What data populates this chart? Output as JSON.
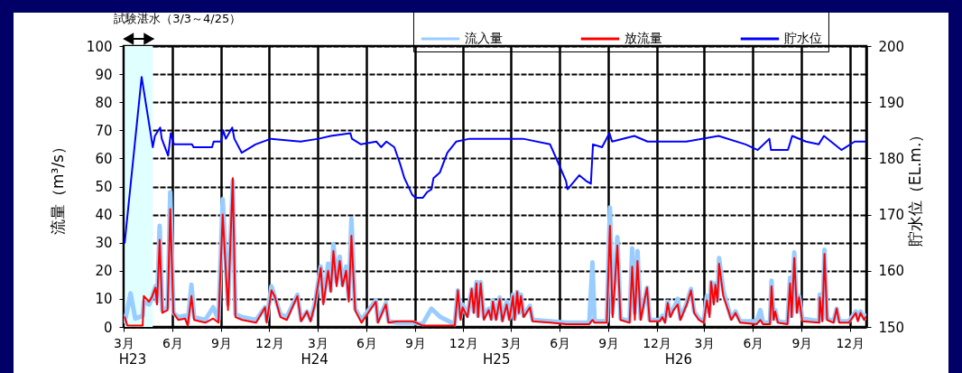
{
  "chart_data": {
    "type": "line",
    "ylabel": "流量（m³/s）",
    "y2label": "貯水位（EL.m.）",
    "xlim": [
      "2011-03-01",
      "2015-01-01"
    ],
    "xticks": [
      {
        "value": "2011-03-01",
        "label": "3月"
      },
      {
        "value": "2011-06-01",
        "label": "6月"
      },
      {
        "value": "2011-09-01",
        "label": "9月"
      },
      {
        "value": "2011-12-01",
        "label": "12月"
      },
      {
        "value": "2012-03-01",
        "label": "3月"
      },
      {
        "value": "2012-06-01",
        "label": "6月"
      },
      {
        "value": "2012-09-01",
        "label": "9月"
      },
      {
        "value": "2012-12-01",
        "label": "12月"
      },
      {
        "value": "2013-03-01",
        "label": "3月"
      },
      {
        "value": "2013-06-01",
        "label": "6月"
      },
      {
        "value": "2013-09-01",
        "label": "9月"
      },
      {
        "value": "2013-12-01",
        "label": "12月"
      },
      {
        "value": "2014-03-01",
        "label": "3月"
      },
      {
        "value": "2014-06-01",
        "label": "6月"
      },
      {
        "value": "2014-09-01",
        "label": "9月"
      },
      {
        "value": "2014-12-01",
        "label": "12月"
      }
    ],
    "ylim": [
      0,
      100
    ],
    "yticks": [
      0,
      10,
      20,
      30,
      40,
      50,
      60,
      70,
      80,
      90,
      100
    ],
    "y2lim": [
      150,
      200
    ],
    "y2ticks": [
      150,
      160,
      170,
      180,
      190,
      200
    ],
    "grid": true,
    "legend": "top",
    "x": [
      "2011-03-03",
      "2011-03-08",
      "2011-03-14",
      "2011-03-23",
      "2011-04-06",
      "2011-04-08",
      "2011-04-18",
      "2011-04-23",
      "2011-04-30",
      "2011-05-03",
      "2011-05-08",
      "2011-05-13",
      "2011-05-23",
      "2011-05-28",
      "2011-06-03",
      "2011-06-12",
      "2011-06-25",
      "2011-06-30",
      "2011-07-07",
      "2011-07-12",
      "2011-08-02",
      "2011-08-17",
      "2011-08-27",
      "2011-09-04",
      "2011-09-14",
      "2011-09-23",
      "2011-09-28",
      "2011-10-11",
      "2011-11-06",
      "2011-11-23",
      "2011-11-26",
      "2011-12-05",
      "2011-12-11",
      "2011-12-22",
      "2012-01-03",
      "2012-01-23",
      "2012-01-30",
      "2012-02-10",
      "2012-02-17",
      "2012-02-25",
      "2012-03-07",
      "2012-03-12",
      "2012-03-21",
      "2012-03-26",
      "2012-03-31",
      "2012-04-06",
      "2012-04-12",
      "2012-04-17",
      "2012-04-24",
      "2012-04-29",
      "2012-05-04",
      "2012-05-11",
      "2012-05-23",
      "2012-06-19",
      "2012-06-23",
      "2012-07-08",
      "2012-07-13",
      "2012-07-30",
      "2012-08-28",
      "2012-09-15",
      "2012-10-02",
      "2012-10-19",
      "2012-11-15",
      "2012-11-21",
      "2012-11-26",
      "2012-11-30",
      "2012-12-09",
      "2012-12-17",
      "2012-12-21",
      "2012-12-26",
      "2012-12-29",
      "2013-01-03",
      "2013-01-09",
      "2013-01-18",
      "2013-01-23",
      "2013-01-26",
      "2013-02-01",
      "2013-02-08",
      "2013-02-13",
      "2013-02-21",
      "2013-02-26",
      "2013-03-05",
      "2013-03-08",
      "2013-03-13",
      "2013-03-16",
      "2013-03-20",
      "2013-03-25",
      "2013-04-06",
      "2013-04-11",
      "2013-05-15",
      "2013-06-14",
      "2013-07-27",
      "2013-08-02",
      "2013-08-06",
      "2013-08-29",
      "2013-09-04",
      "2013-09-09",
      "2013-09-18",
      "2013-09-24",
      "2013-10-11",
      "2013-10-16",
      "2013-10-21",
      "2013-10-26",
      "2013-11-01",
      "2013-11-13",
      "2013-11-18",
      "2013-12-07",
      "2013-12-12",
      "2013-12-17",
      "2013-12-22",
      "2013-12-27",
      "2014-01-02",
      "2014-01-10",
      "2014-01-15",
      "2014-01-27",
      "2014-02-04",
      "2014-02-10",
      "2014-02-19",
      "2014-02-28",
      "2014-03-06",
      "2014-03-11",
      "2014-03-14",
      "2014-03-19",
      "2014-03-22",
      "2014-03-26",
      "2014-03-29",
      "2014-04-06",
      "2014-04-16",
      "2014-04-21",
      "2014-04-29",
      "2014-05-08",
      "2014-06-08",
      "2014-06-15",
      "2014-06-20",
      "2014-07-03",
      "2014-07-06",
      "2014-07-10",
      "2014-07-13",
      "2014-07-18",
      "2014-08-05",
      "2014-08-10",
      "2014-08-13",
      "2014-08-18",
      "2014-08-23",
      "2014-08-27",
      "2014-09-02",
      "2014-10-04",
      "2014-10-05",
      "2014-10-10",
      "2014-10-14",
      "2014-10-19",
      "2014-10-31",
      "2014-11-06",
      "2014-11-11",
      "2014-11-29",
      "2014-12-12",
      "2014-12-16",
      "2014-12-21",
      "2014-12-28",
      "2014-12-31"
    ],
    "series": [
      {
        "name": "流入量",
        "color": "#99ccff",
        "values": [
          2,
          6,
          12,
          3,
          4,
          9,
          8,
          10,
          14.5,
          9,
          36,
          6,
          7,
          48,
          5,
          3.5,
          4,
          1.5,
          15,
          3.5,
          2.5,
          7,
          2.5,
          45.5,
          8,
          52,
          4.5,
          3.5,
          2.5,
          7,
          2.5,
          14.5,
          11,
          4.5,
          3.5,
          11.5,
          2.5,
          5.5,
          2.5,
          8.5,
          21.5,
          9,
          22.5,
          13,
          29.5,
          16,
          25,
          15,
          21.5,
          10,
          38.5,
          6.5,
          2.5,
          9.5,
          2,
          8.5,
          2,
          1.5,
          1.5,
          1,
          6.5,
          3.5,
          1,
          13,
          3.5,
          8,
          4,
          13.5,
          5.5,
          16,
          4,
          16,
          3.5,
          6.5,
          3,
          9.5,
          3,
          10.5,
          2.5,
          9,
          3,
          11.5,
          3,
          12.5,
          5,
          11.5,
          4,
          7.5,
          2.5,
          2,
          1.5,
          1.5,
          23,
          2,
          2,
          42.5,
          5,
          32,
          3,
          2,
          28,
          5,
          27,
          3,
          14,
          2.5,
          2.5,
          4,
          2,
          9,
          4,
          6.5,
          10,
          3,
          8.5,
          13.5,
          5.5,
          3,
          2,
          11,
          5,
          16,
          9,
          15.5,
          10,
          24.5,
          13,
          6,
          3,
          5.5,
          2,
          2,
          6,
          1.5,
          1.5,
          16.5,
          3,
          6,
          2,
          1.5,
          17.5,
          4,
          26.5,
          5.5,
          11,
          3,
          2,
          11.5,
          3,
          27.5,
          3,
          2,
          6.5,
          2,
          2,
          5.5,
          3,
          5.5,
          3,
          4
        ]
      },
      {
        "name": "放流量",
        "color": "#ff0000",
        "values": [
          3.5,
          0.5,
          0.5,
          0.5,
          0.5,
          11,
          9,
          10.5,
          14,
          8,
          31,
          5,
          6,
          42,
          5,
          2.5,
          3,
          0.5,
          11,
          2.5,
          1.5,
          3,
          1.5,
          40,
          6,
          53,
          3.5,
          2.5,
          1.5,
          7,
          1.5,
          13,
          11,
          3.5,
          2.5,
          11,
          2,
          5.5,
          2,
          8,
          21,
          8,
          20,
          12.5,
          27,
          14.5,
          23.5,
          14.5,
          20,
          9,
          32.5,
          6,
          1.5,
          9,
          1.5,
          8,
          1.5,
          2,
          2,
          0.5,
          0.5,
          0.5,
          0.5,
          13,
          2.5,
          7,
          3.5,
          13.5,
          5,
          15.5,
          3.5,
          15.5,
          2.5,
          6,
          2.5,
          9,
          2.5,
          10,
          2,
          8,
          2.5,
          11,
          2.5,
          12.5,
          5,
          11,
          3.5,
          7,
          2,
          1.5,
          1,
          1,
          2.5,
          1.5,
          1.5,
          36,
          3.5,
          29,
          2.5,
          1.5,
          21.5,
          2.5,
          23.5,
          2.5,
          14,
          2,
          2,
          3.5,
          1.5,
          8.5,
          3.5,
          6,
          8,
          2.5,
          8,
          13,
          5,
          2.5,
          1.5,
          9.5,
          3.5,
          16,
          8,
          15,
          9,
          22.5,
          11,
          5.5,
          2.5,
          5,
          1.5,
          1,
          2.5,
          1,
          1,
          14.5,
          2.5,
          5.5,
          1.5,
          1,
          15.5,
          3.5,
          24.5,
          5,
          10.5,
          2,
          1.5,
          10.5,
          2,
          26,
          2.5,
          1.5,
          6.5,
          1.5,
          1.5,
          5,
          2,
          5,
          2.5,
          3.5
        ]
      },
      {
        "name": "貯水位",
        "color": "#0000ff",
        "axis": "y2",
        "x": [
          "2011-03-03",
          "2011-04-04",
          "2011-04-25",
          "2011-04-29",
          "2011-05-09",
          "2011-05-12",
          "2011-05-24",
          "2011-05-29",
          "2011-06-04",
          "2011-07-08",
          "2011-07-11",
          "2011-08-15",
          "2011-08-18",
          "2011-09-01",
          "2011-09-05",
          "2011-09-10",
          "2011-09-22",
          "2011-09-26",
          "2011-10-10",
          "2011-11-05",
          "2011-12-04",
          "2012-01-29",
          "2012-03-03",
          "2012-03-26",
          "2012-05-02",
          "2012-05-05",
          "2012-05-22",
          "2012-06-20",
          "2012-06-29",
          "2012-07-09",
          "2012-07-24",
          "2012-08-04",
          "2012-08-12",
          "2012-08-27",
          "2012-09-02",
          "2012-09-16",
          "2012-09-24",
          "2012-10-02",
          "2012-10-06",
          "2012-10-18",
          "2012-11-01",
          "2012-11-18",
          "2012-12-13",
          "2013-03-24",
          "2013-05-14",
          "2013-05-28",
          "2013-06-13",
          "2013-06-16",
          "2013-07-08",
          "2013-07-21",
          "2013-07-30",
          "2013-08-03",
          "2013-08-20",
          "2013-09-03",
          "2013-09-08",
          "2013-10-20",
          "2013-11-14",
          "2014-01-26",
          "2014-03-28",
          "2014-05-18",
          "2014-06-10",
          "2014-07-02",
          "2014-07-05",
          "2014-08-06",
          "2014-08-14",
          "2014-09-09",
          "2014-10-03",
          "2014-10-13",
          "2014-11-15",
          "2014-12-10",
          "2014-12-29"
        ],
        "values": [
          165,
          194.5,
          182,
          184,
          185.5,
          183.5,
          180.5,
          184.5,
          182.5,
          182.5,
          182,
          182,
          183,
          183,
          185,
          183.5,
          185.5,
          183.5,
          181,
          182.5,
          183.5,
          183,
          183.5,
          184,
          184.5,
          183.5,
          182.5,
          183,
          182,
          183,
          182,
          179,
          176.5,
          173.5,
          173,
          173,
          174,
          174.5,
          176.5,
          177.5,
          181,
          183,
          183.5,
          183.5,
          182.5,
          179.5,
          176,
          174.5,
          177,
          176,
          175.5,
          182.5,
          182,
          184.5,
          183,
          184,
          183,
          183,
          184,
          182.5,
          181.5,
          183.5,
          181.5,
          181.5,
          184,
          183,
          182.5,
          184,
          181.5,
          183,
          183
        ]
      }
    ],
    "bands": [
      {
        "axis": "x",
        "from": "2011-03-03",
        "to": "2011-04-25",
        "label": "試験湛水（3/3～4/25）",
        "color": "#e0ffff"
      }
    ],
    "annotations": [
      "H23",
      "H24",
      "H25",
      "H26"
    ]
  }
}
